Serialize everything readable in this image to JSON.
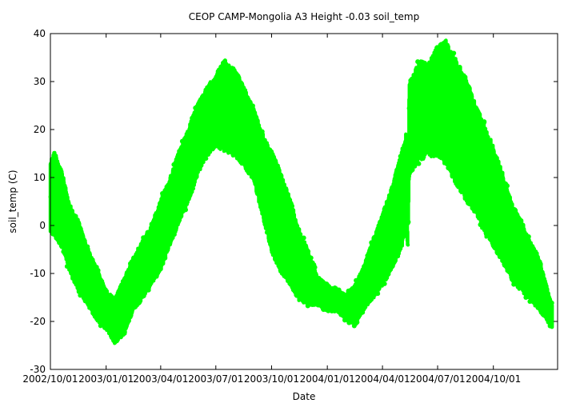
{
  "chart_data": {
    "type": "scatter",
    "title": "CEOP CAMP-Mongolia A3 Height -0.03 soil_temp",
    "xlabel": "Date",
    "ylabel": "soil_temp (C)",
    "ylim": [
      -30,
      40
    ],
    "xlim": [
      "2002-10-01",
      "2005-01-15"
    ],
    "yticks": [
      -30,
      -20,
      -10,
      0,
      10,
      20,
      30,
      40
    ],
    "xticks": [
      {
        "date": "2002-10-01",
        "label": "2002/10/01"
      },
      {
        "date": "2003-01-01",
        "label": "2003/01/01"
      },
      {
        "date": "2003-04-01",
        "label": "2003/04/01"
      },
      {
        "date": "2003-07-01",
        "label": "2003/07/01"
      },
      {
        "date": "2003-10-01",
        "label": "2003/10/01"
      },
      {
        "date": "2004-01-01",
        "label": "2004/01/01"
      },
      {
        "date": "2004-04-01",
        "label": "2004/04/01"
      },
      {
        "date": "2004-07-01",
        "label": "2004/07/01"
      },
      {
        "date": "2004-10-01",
        "label": "2004/10/01"
      }
    ],
    "grid": false,
    "series": [
      {
        "color": "#00ff00",
        "envelope": {
          "x": [
            "2002-10-01",
            "2002-10-08",
            "2002-10-20",
            "2002-11-01",
            "2002-11-15",
            "2002-12-01",
            "2002-12-15",
            "2003-01-01",
            "2003-01-15",
            "2003-02-01",
            "2003-02-15",
            "2003-03-01",
            "2003-03-15",
            "2003-04-01",
            "2003-04-15",
            "2003-05-01",
            "2003-05-15",
            "2003-06-01",
            "2003-06-15",
            "2003-07-01",
            "2003-07-15",
            "2003-08-01",
            "2003-08-15",
            "2003-09-01",
            "2003-09-15",
            "2003-10-01",
            "2003-10-15",
            "2003-11-01",
            "2003-11-15",
            "2003-12-01",
            "2003-12-15",
            "2004-01-01",
            "2004-01-15",
            "2004-02-01",
            "2004-02-15",
            "2004-03-01",
            "2004-03-15",
            "2004-04-01",
            "2004-04-15",
            "2004-05-01",
            "2004-05-10",
            "2004-05-13",
            "2004-05-15",
            "2004-06-01",
            "2004-06-15",
            "2004-07-01",
            "2004-07-15",
            "2004-08-01",
            "2004-08-15",
            "2004-09-01",
            "2004-09-15",
            "2004-10-01",
            "2004-10-15",
            "2004-11-01",
            "2004-11-15",
            "2004-12-01",
            "2004-12-15",
            "2005-01-01",
            "2005-01-06"
          ],
          "ymax": [
            14,
            16,
            12,
            5,
            2,
            -4,
            -8,
            -13,
            -15,
            -10,
            -6,
            -3,
            0,
            6,
            10,
            16,
            20,
            26,
            29,
            32,
            35,
            33,
            30,
            25,
            20,
            16,
            12,
            6,
            0,
            -5,
            -10,
            -12,
            -13,
            -14,
            -12,
            -8,
            -3,
            3,
            8,
            15,
            20,
            -5,
            30,
            35,
            34,
            38,
            39,
            35,
            32,
            26,
            22,
            17,
            12,
            5,
            2,
            -3,
            -6,
            -14,
            -16
          ],
          "ymin": [
            -2,
            -3,
            -5,
            -10,
            -14,
            -17,
            -20,
            -22,
            -25,
            -23,
            -18,
            -16,
            -13,
            -10,
            -5,
            0,
            4,
            10,
            14,
            16,
            15,
            14,
            12,
            9,
            2,
            -6,
            -10,
            -13,
            -16,
            -17,
            -17,
            -18,
            -18,
            -20,
            -21,
            -18,
            -16,
            -13,
            -10,
            -6,
            -2,
            -5,
            10,
            13,
            14,
            14,
            12,
            8,
            5,
            2,
            -2,
            -5,
            -8,
            -12,
            -14,
            -16,
            -18,
            -21,
            -22
          ]
        }
      }
    ]
  }
}
